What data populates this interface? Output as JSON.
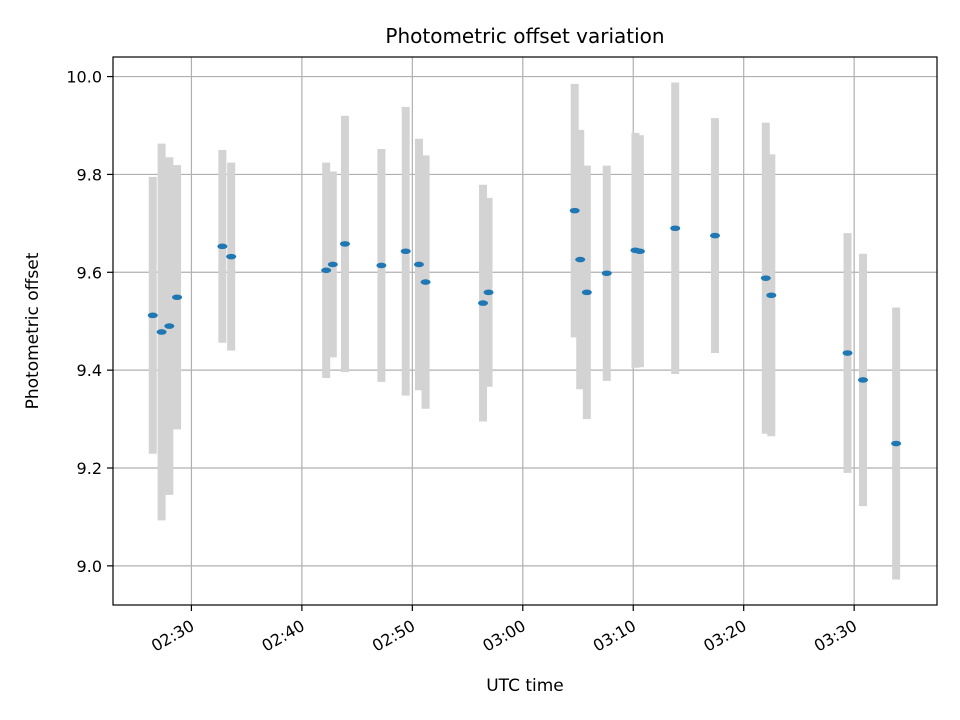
{
  "chart_data": {
    "type": "scatter",
    "title": "Photometric offset variation",
    "xlabel": "UTC time",
    "ylabel": "Photometric offset",
    "xlim": [
      "02:22:54",
      "03:37:30"
    ],
    "ylim": [
      8.92,
      10.04
    ],
    "xticks": [
      "02:30",
      "02:40",
      "02:50",
      "03:00",
      "03:10",
      "03:20",
      "03:30"
    ],
    "yticks": [
      9.0,
      9.2,
      9.4,
      9.6,
      9.8,
      10.0
    ],
    "ytick_labels": [
      "9.0",
      "9.2",
      "9.4",
      "9.6",
      "9.8",
      "10.0"
    ],
    "grid": true,
    "marker_color": "#1f77b4",
    "errorbar_color": "#d3d3d3",
    "points": [
      {
        "x": "02:26:30",
        "y": 9.512,
        "yerr": 0.283
      },
      {
        "x": "02:27:18",
        "y": 9.478,
        "yerr": 0.385
      },
      {
        "x": "02:28:00",
        "y": 9.49,
        "yerr": 0.345
      },
      {
        "x": "02:28:42",
        "y": 9.549,
        "yerr": 0.27
      },
      {
        "x": "02:32:48",
        "y": 9.653,
        "yerr": 0.197
      },
      {
        "x": "02:33:36",
        "y": 9.632,
        "yerr": 0.192
      },
      {
        "x": "02:42:12",
        "y": 9.604,
        "yerr": 0.22
      },
      {
        "x": "02:42:48",
        "y": 9.616,
        "yerr": 0.19
      },
      {
        "x": "02:43:54",
        "y": 9.658,
        "yerr": 0.262
      },
      {
        "x": "02:47:12",
        "y": 9.614,
        "yerr": 0.238
      },
      {
        "x": "02:49:24",
        "y": 9.643,
        "yerr": 0.295
      },
      {
        "x": "02:50:36",
        "y": 9.616,
        "yerr": 0.257
      },
      {
        "x": "02:51:12",
        "y": 9.58,
        "yerr": 0.259
      },
      {
        "x": "02:56:24",
        "y": 9.537,
        "yerr": 0.242
      },
      {
        "x": "02:56:54",
        "y": 9.559,
        "yerr": 0.193
      },
      {
        "x": "03:04:42",
        "y": 9.726,
        "yerr": 0.259
      },
      {
        "x": "03:05:12",
        "y": 9.626,
        "yerr": 0.265
      },
      {
        "x": "03:05:48",
        "y": 9.559,
        "yerr": 0.259
      },
      {
        "x": "03:07:36",
        "y": 9.598,
        "yerr": 0.22
      },
      {
        "x": "03:10:12",
        "y": 9.645,
        "yerr": 0.24
      },
      {
        "x": "03:10:36",
        "y": 9.643,
        "yerr": 0.237
      },
      {
        "x": "03:13:48",
        "y": 9.69,
        "yerr": 0.298
      },
      {
        "x": "03:17:24",
        "y": 9.675,
        "yerr": 0.24
      },
      {
        "x": "03:22:00",
        "y": 9.588,
        "yerr": 0.318
      },
      {
        "x": "03:22:30",
        "y": 9.553,
        "yerr": 0.288
      },
      {
        "x": "03:29:24",
        "y": 9.435,
        "yerr": 0.245
      },
      {
        "x": "03:30:48",
        "y": 9.38,
        "yerr": 0.258
      },
      {
        "x": "03:33:48",
        "y": 9.25,
        "yerr": 0.278
      }
    ]
  }
}
